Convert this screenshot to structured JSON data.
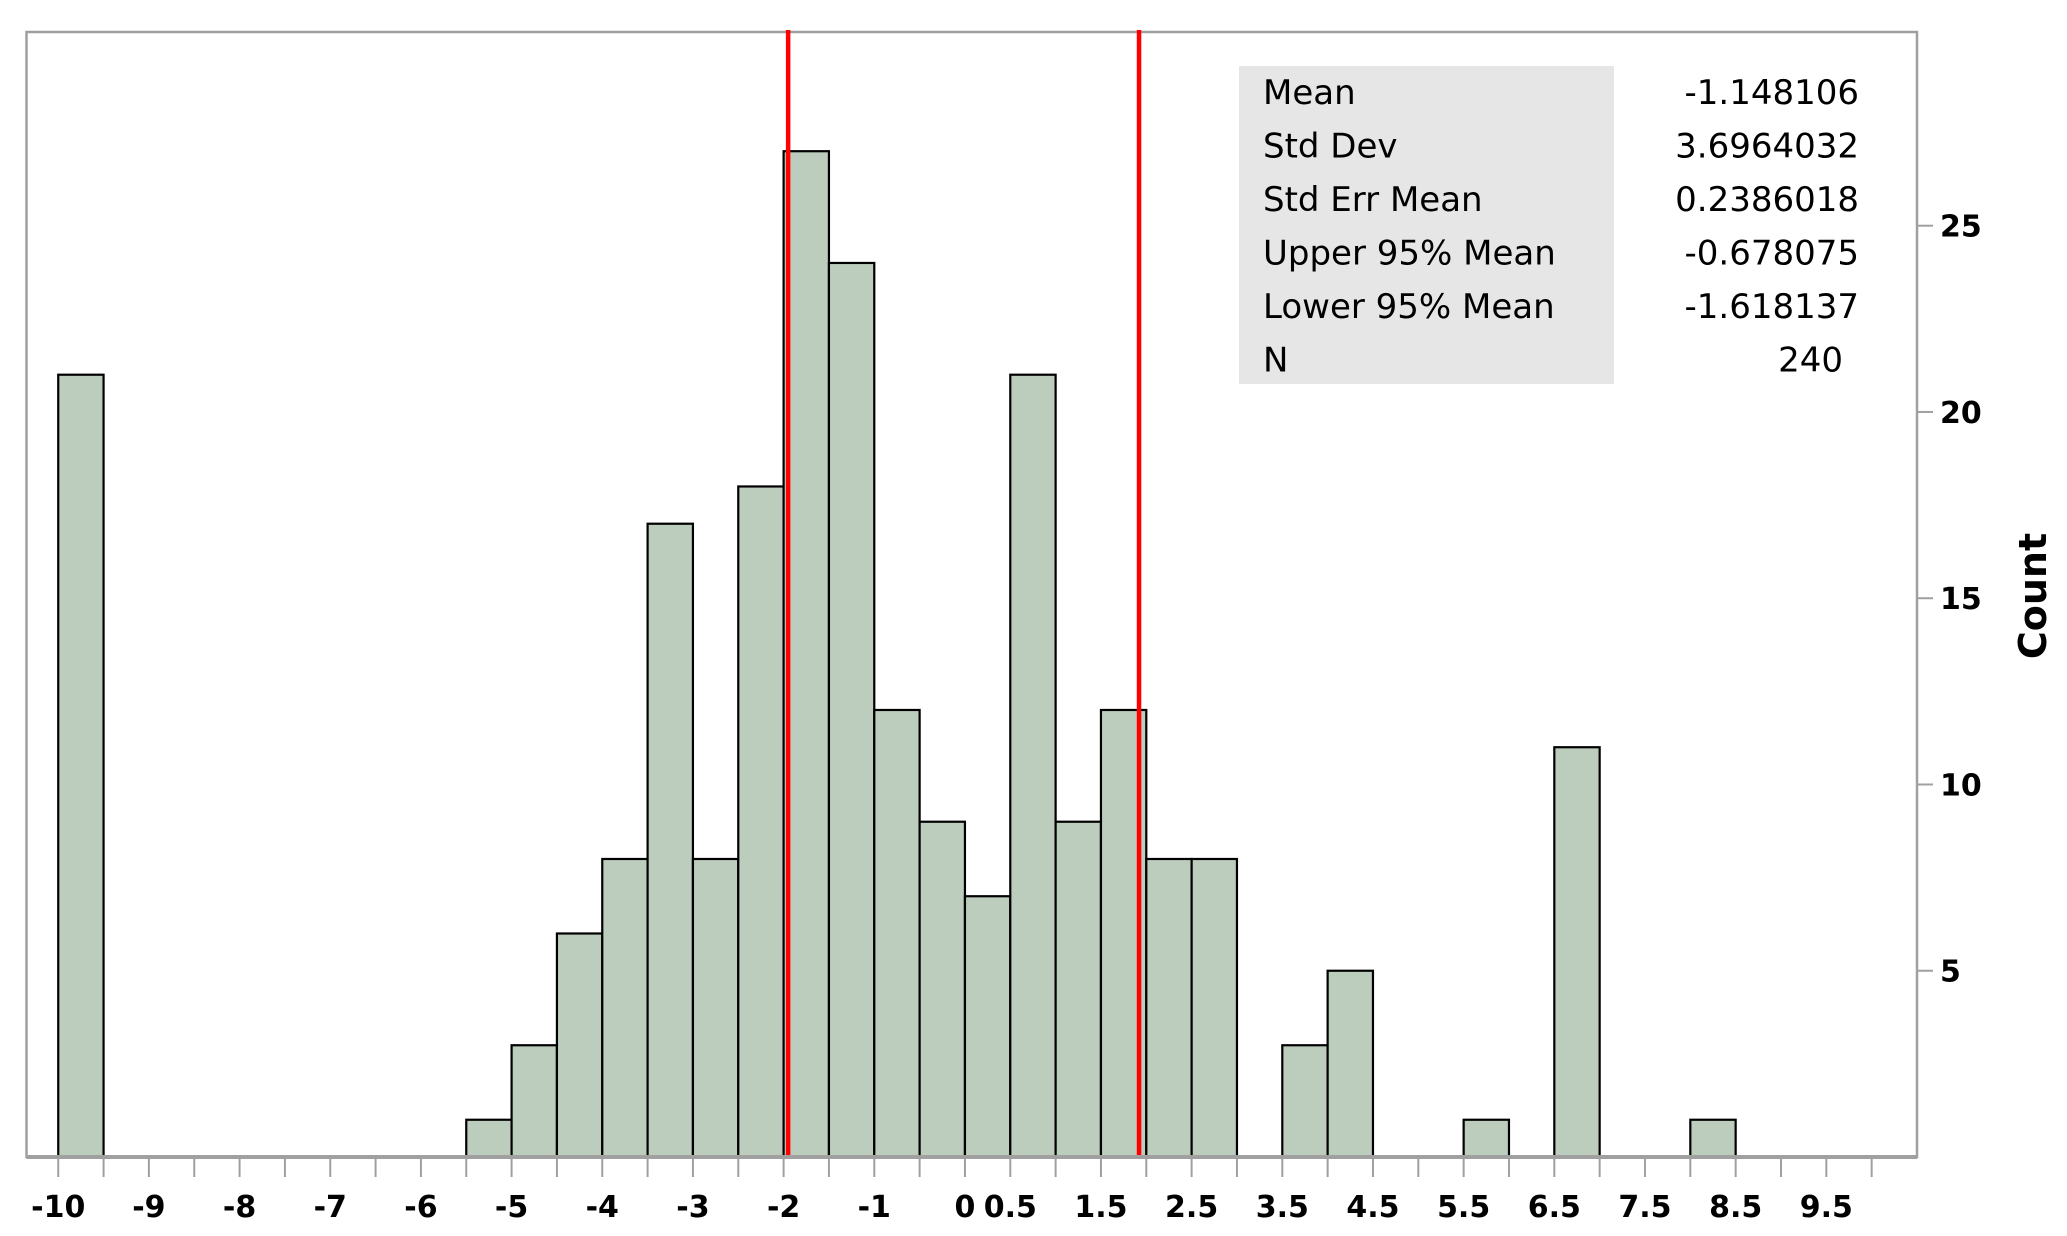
{
  "chart_data": {
    "type": "bar",
    "title": "",
    "xlabel": "",
    "ylabel": "Count",
    "xlim": [
      -10.35,
      10.5
    ],
    "ylim": [
      0,
      30.2
    ],
    "bin_width": 0.5,
    "bins": [
      {
        "start": -10,
        "count": 21
      },
      {
        "start": -5.5,
        "count": 1
      },
      {
        "start": -5,
        "count": 3
      },
      {
        "start": -4.5,
        "count": 6
      },
      {
        "start": -4,
        "count": 8
      },
      {
        "start": -3.5,
        "count": 17
      },
      {
        "start": -3,
        "count": 8
      },
      {
        "start": -2.5,
        "count": 18
      },
      {
        "start": -2,
        "count": 27
      },
      {
        "start": -1.5,
        "count": 24
      },
      {
        "start": -1,
        "count": 12
      },
      {
        "start": -0.5,
        "count": 9
      },
      {
        "start": 0,
        "count": 7
      },
      {
        "start": 0.5,
        "count": 21
      },
      {
        "start": 1,
        "count": 9
      },
      {
        "start": 1.5,
        "count": 12
      },
      {
        "start": 2,
        "count": 8
      },
      {
        "start": 2.5,
        "count": 8
      },
      {
        "start": 3.5,
        "count": 3
      },
      {
        "start": 4,
        "count": 5
      },
      {
        "start": 5.5,
        "count": 1
      },
      {
        "start": 6.5,
        "count": 11
      },
      {
        "start": 8,
        "count": 1
      }
    ],
    "x_tick_labels": [
      {
        "value": -10,
        "label": "-10"
      },
      {
        "value": -9,
        "label": "-9"
      },
      {
        "value": -8,
        "label": "-8"
      },
      {
        "value": -7,
        "label": "-7"
      },
      {
        "value": -6,
        "label": "-6"
      },
      {
        "value": -5,
        "label": "-5"
      },
      {
        "value": -4,
        "label": "-4"
      },
      {
        "value": -3,
        "label": "-3"
      },
      {
        "value": -2,
        "label": "-2"
      },
      {
        "value": -1,
        "label": "-1"
      },
      {
        "value": 0,
        "label": "0"
      },
      {
        "value": 0.5,
        "label": "0.5"
      },
      {
        "value": 1.5,
        "label": "1.5"
      },
      {
        "value": 2.5,
        "label": "2.5"
      },
      {
        "value": 3.5,
        "label": "3.5"
      },
      {
        "value": 4.5,
        "label": "4.5"
      },
      {
        "value": 5.5,
        "label": "5.5"
      },
      {
        "value": 6.5,
        "label": "6.5"
      },
      {
        "value": 7.5,
        "label": "7.5"
      },
      {
        "value": 8.5,
        "label": "8.5"
      },
      {
        "value": 9.5,
        "label": "9.5"
      }
    ],
    "x_minor_tick_step": 0.5,
    "x_tick_range": [
      -10,
      10
    ],
    "y_ticks": [
      5,
      10,
      15,
      20,
      25
    ],
    "y_axis_side": "right",
    "reference_lines": [
      -1.95,
      1.92
    ],
    "colors": {
      "bar_fill": "#BCCDBE",
      "bar_stroke": "#000000",
      "reference_line": "#FF0000",
      "frame": "#A0A0A0",
      "stats_bg": "#E6E6E6"
    },
    "stats_box": {
      "placement": "top-right",
      "rows": [
        {
          "label": "Mean",
          "value": "-1.148106"
        },
        {
          "label": "Std Dev",
          "value": "3.6964032"
        },
        {
          "label": "Std Err Mean",
          "value": "0.2386018"
        },
        {
          "label": "Upper 95% Mean",
          "value": "-0.678075"
        },
        {
          "label": "Lower 95% Mean",
          "value": "-1.618137"
        },
        {
          "label": "N",
          "value": "240"
        }
      ]
    }
  }
}
